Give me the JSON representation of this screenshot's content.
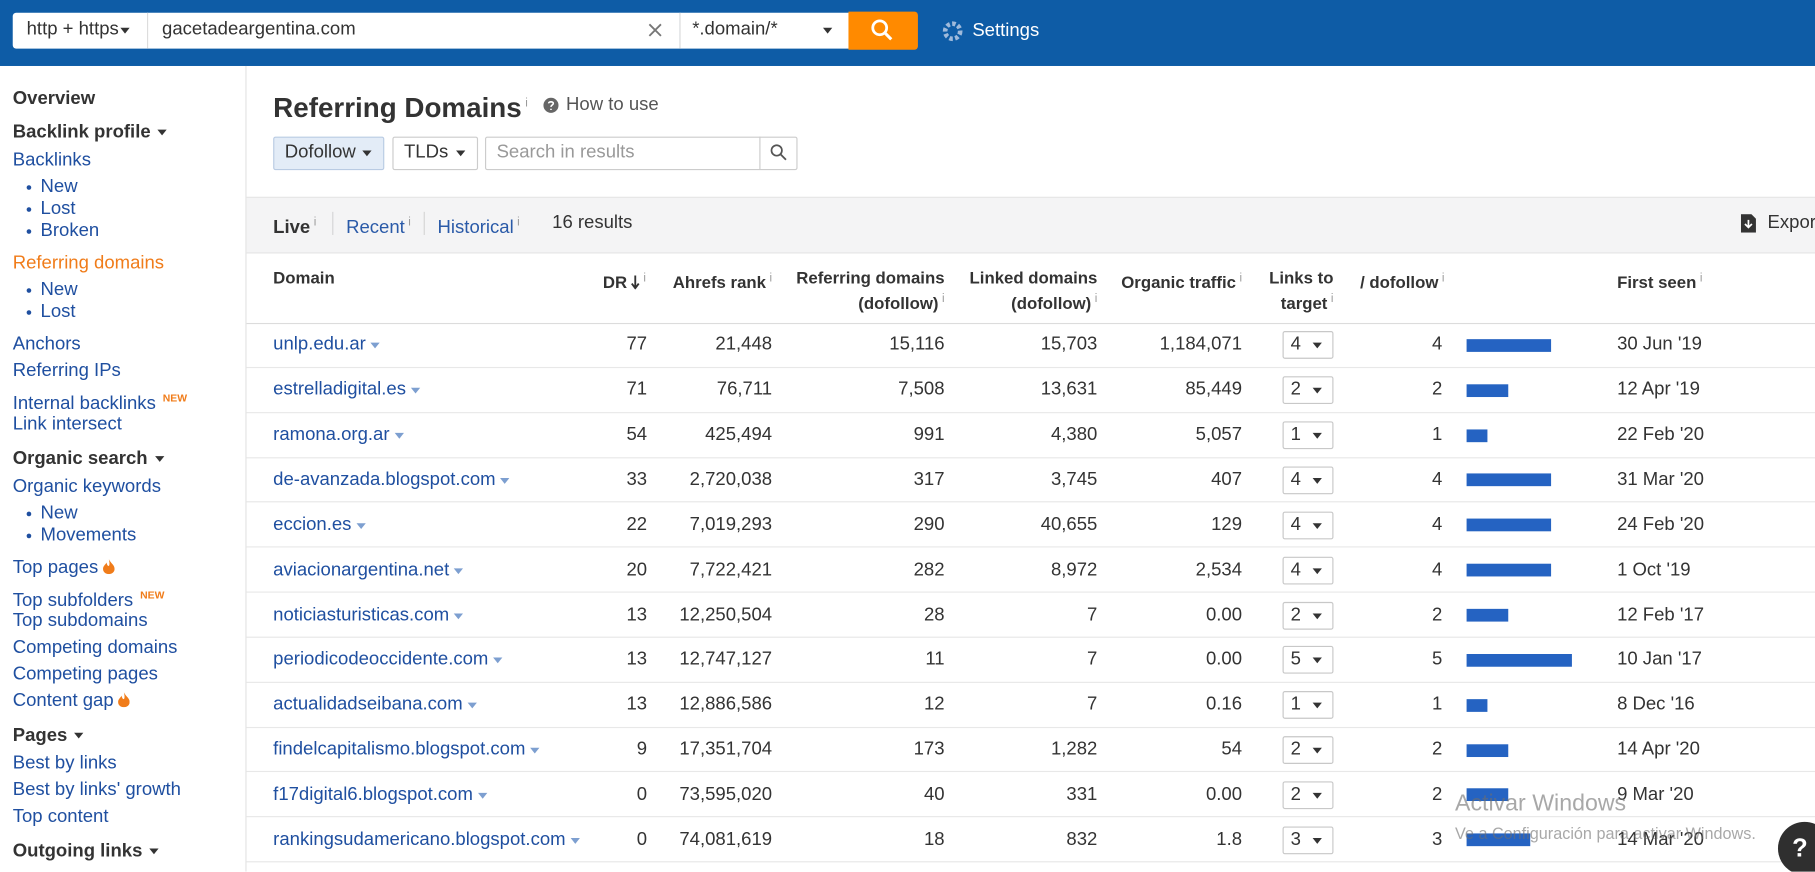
{
  "toolbar": {
    "protocol": "http + https",
    "target": "gacetadeargentina.com",
    "mode": "*.domain/*",
    "settings": "Settings"
  },
  "sidebar": [
    {
      "title": "Overview"
    },
    {
      "title": "Backlink profile",
      "collapsible": true,
      "items": [
        {
          "label": "Backlinks",
          "sub": [
            "New",
            "Lost",
            "Broken"
          ]
        },
        {
          "label": "Referring domains",
          "active": true,
          "sub": [
            "New",
            "Lost"
          ]
        },
        {
          "label": "Anchors"
        },
        {
          "label": "Referring IPs"
        },
        {
          "label": "Internal backlinks",
          "badge": "NEW"
        },
        {
          "label": "Link intersect"
        }
      ]
    },
    {
      "title": "Organic search",
      "collapsible": true,
      "items": [
        {
          "label": "Organic keywords",
          "sub": [
            "New",
            "Movements"
          ]
        },
        {
          "label": "Top pages",
          "hot": true
        },
        {
          "label": "Top subfolders",
          "badge": "NEW"
        },
        {
          "label": "Top subdomains"
        },
        {
          "label": "Competing domains"
        },
        {
          "label": "Competing pages"
        },
        {
          "label": "Content gap",
          "hot": true
        }
      ]
    },
    {
      "title": "Pages",
      "collapsible": true,
      "items": [
        {
          "label": "Best by links"
        },
        {
          "label": "Best by links' growth"
        },
        {
          "label": "Top content"
        }
      ]
    },
    {
      "title": "Outgoing links",
      "collapsible": true
    }
  ],
  "page": {
    "title": "Referring Domains",
    "info_mark": "i",
    "how_to_use": "How to use",
    "filters": {
      "dofollow": "Dofollow",
      "tlds": "TLDs",
      "search_placeholder": "Search in results"
    },
    "tabs": [
      "Live",
      "Recent",
      "Historical"
    ],
    "results": "16 results",
    "export": "Export"
  },
  "table": {
    "columns": [
      {
        "label": [
          "Domain"
        ]
      },
      {
        "label": [
          "DR"
        ]
      },
      {
        "label": [
          "Ahrefs rank"
        ]
      },
      {
        "label": [
          "Referring domains",
          "(dofollow)"
        ]
      },
      {
        "label": [
          "Linked domains",
          "(dofollow)"
        ]
      },
      {
        "label": [
          "Organic traffic"
        ]
      },
      {
        "label": [
          "Links to",
          "target"
        ]
      },
      {
        "label": [
          "/ dofollow"
        ]
      },
      {
        "label": [
          "First seen"
        ]
      }
    ],
    "rows": [
      {
        "domain": "unlp.edu.ar",
        "dr": 77,
        "ahrefs_rank": "21,448",
        "referring_domains": "15,116",
        "linked_domains": "15,703",
        "organic_traffic": "1,184,071",
        "links_to_target": 4,
        "dofollow": 4,
        "first_seen": "30 Jun '19"
      },
      {
        "domain": "estrelladigital.es",
        "dr": 71,
        "ahrefs_rank": "76,711",
        "referring_domains": "7,508",
        "linked_domains": "13,631",
        "organic_traffic": "85,449",
        "links_to_target": 2,
        "dofollow": 2,
        "first_seen": "12 Apr '19"
      },
      {
        "domain": "ramona.org.ar",
        "dr": 54,
        "ahrefs_rank": "425,494",
        "referring_domains": "991",
        "linked_domains": "4,380",
        "organic_traffic": "5,057",
        "links_to_target": 1,
        "dofollow": 1,
        "first_seen": "22 Feb '20"
      },
      {
        "domain": "de-avanzada.blogspot.com",
        "dr": 33,
        "ahrefs_rank": "2,720,038",
        "referring_domains": "317",
        "linked_domains": "3,745",
        "organic_traffic": "407",
        "links_to_target": 4,
        "dofollow": 4,
        "first_seen": "31 Mar '20"
      },
      {
        "domain": "eccion.es",
        "dr": 22,
        "ahrefs_rank": "7,019,293",
        "referring_domains": "290",
        "linked_domains": "40,655",
        "organic_traffic": "129",
        "links_to_target": 4,
        "dofollow": 4,
        "first_seen": "24 Feb '20"
      },
      {
        "domain": "aviacionargentina.net",
        "dr": 20,
        "ahrefs_rank": "7,722,421",
        "referring_domains": "282",
        "linked_domains": "8,972",
        "organic_traffic": "2,534",
        "links_to_target": 4,
        "dofollow": 4,
        "first_seen": "1 Oct '19"
      },
      {
        "domain": "noticiasturisticas.com",
        "dr": 13,
        "ahrefs_rank": "12,250,504",
        "referring_domains": "28",
        "linked_domains": "7",
        "organic_traffic": "0.00",
        "links_to_target": 2,
        "dofollow": 2,
        "first_seen": "12 Feb '17"
      },
      {
        "domain": "periodicodeoccidente.com",
        "dr": 13,
        "ahrefs_rank": "12,747,127",
        "referring_domains": "11",
        "linked_domains": "7",
        "organic_traffic": "0.00",
        "links_to_target": 5,
        "dofollow": 5,
        "first_seen": "10 Jan '17"
      },
      {
        "domain": "actualidadseibana.com",
        "dr": 13,
        "ahrefs_rank": "12,886,586",
        "referring_domains": "12",
        "linked_domains": "7",
        "organic_traffic": "0.16",
        "links_to_target": 1,
        "dofollow": 1,
        "first_seen": "8 Dec '16"
      },
      {
        "domain": "findelcapitalismo.blogspot.com",
        "dr": 9,
        "ahrefs_rank": "17,351,704",
        "referring_domains": "173",
        "linked_domains": "1,282",
        "organic_traffic": "54",
        "links_to_target": 2,
        "dofollow": 2,
        "first_seen": "14 Apr '20"
      },
      {
        "domain": "f17digital6.blogspot.com",
        "dr": 0,
        "ahrefs_rank": "73,595,020",
        "referring_domains": "40",
        "linked_domains": "331",
        "organic_traffic": "0.00",
        "links_to_target": 2,
        "dofollow": 2,
        "first_seen": "9 Mar '20"
      },
      {
        "domain": "rankingsudamericano.blogspot.com",
        "dr": 0,
        "ahrefs_rank": "74,081,619",
        "referring_domains": "18",
        "linked_domains": "832",
        "organic_traffic": "1.8",
        "links_to_target": 3,
        "dofollow": 3,
        "first_seen": "14 Mar '20"
      }
    ]
  },
  "watermark": {
    "title": "Activar Windows",
    "subtitle": "Ve a Configuración para activar Windows."
  },
  "help_button": "?"
}
